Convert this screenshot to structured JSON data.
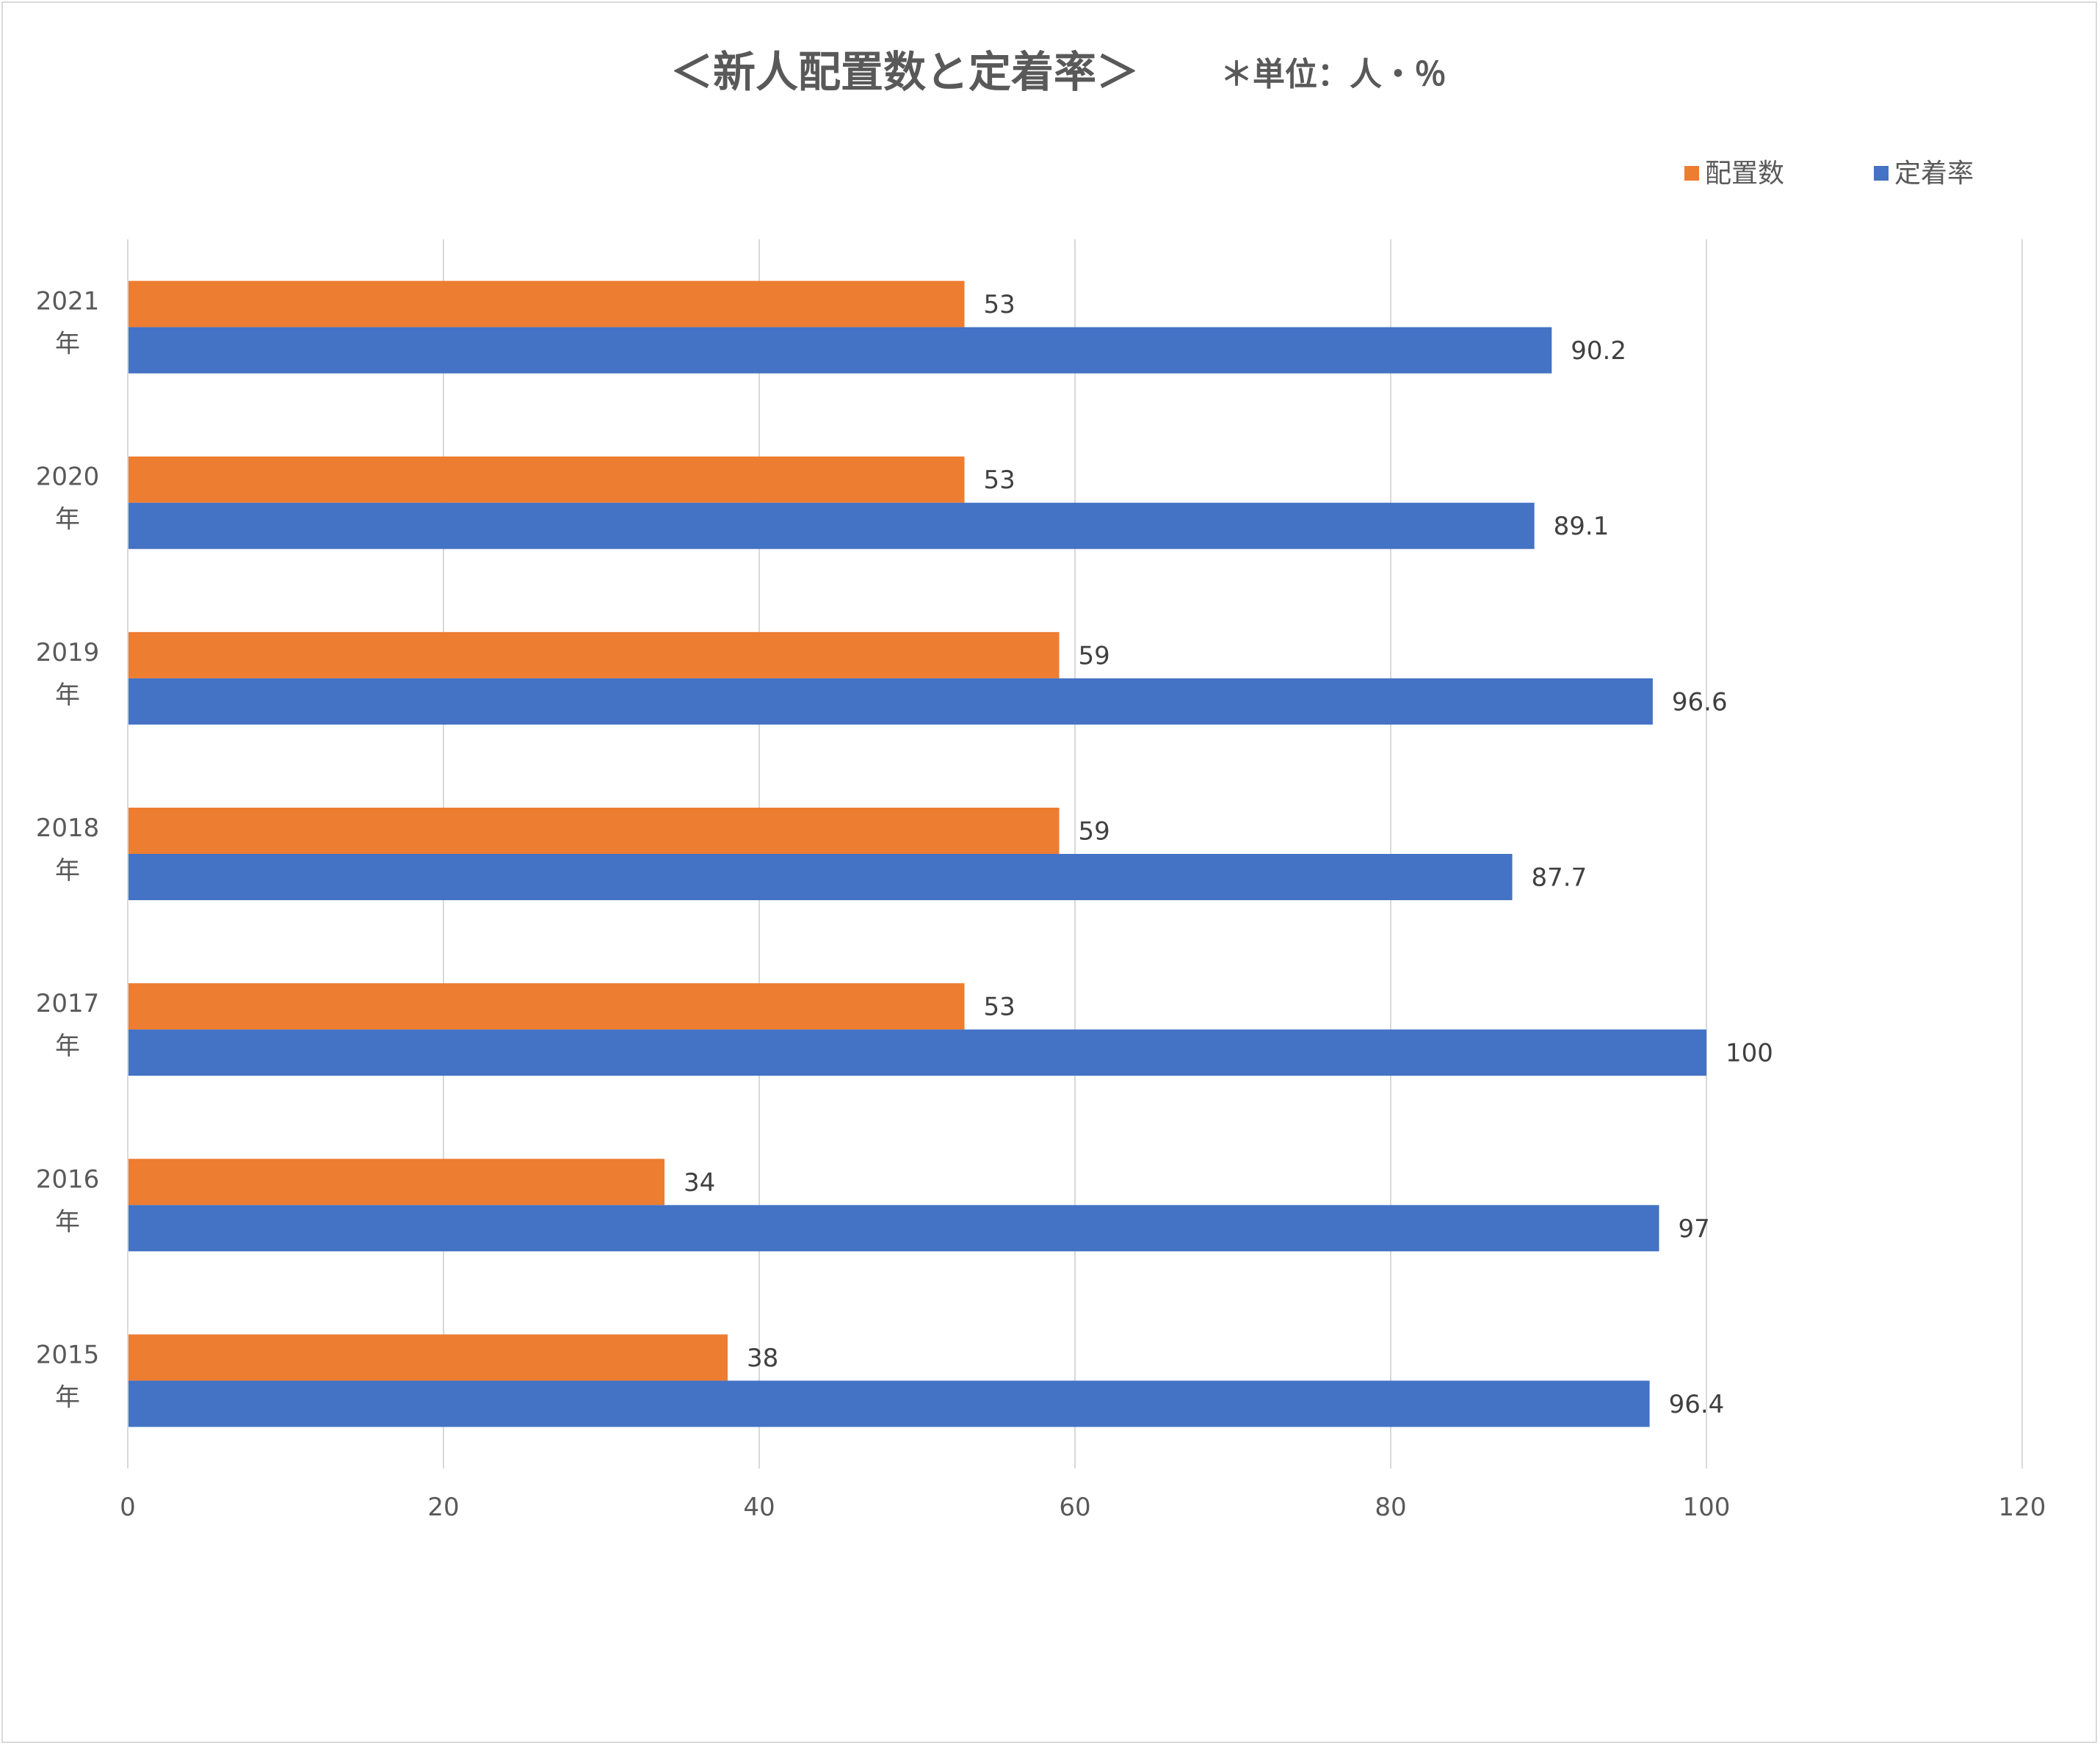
{
  "chart_data": {
    "type": "bar",
    "orientation": "horizontal",
    "title": "＜新人配置数と定着率＞",
    "subtitle": "＊単位：人・％",
    "categories": [
      "2021年",
      "2020年",
      "2019年",
      "2018年",
      "2017年",
      "2016年",
      "2015年"
    ],
    "series": [
      {
        "name": "配置数",
        "color": "#ED7D31",
        "values": [
          53,
          53,
          59,
          59,
          53,
          34,
          38
        ]
      },
      {
        "name": "定着率",
        "color": "#4472C4",
        "values": [
          90.2,
          89.1,
          96.6,
          87.7,
          100,
          97,
          96.4
        ]
      }
    ],
    "xlim": [
      0,
      120
    ],
    "xticks": [
      "0",
      "20",
      "40",
      "60",
      "80",
      "100",
      "120"
    ],
    "grid": true,
    "legend_position": "top-right",
    "data_labels": true
  }
}
